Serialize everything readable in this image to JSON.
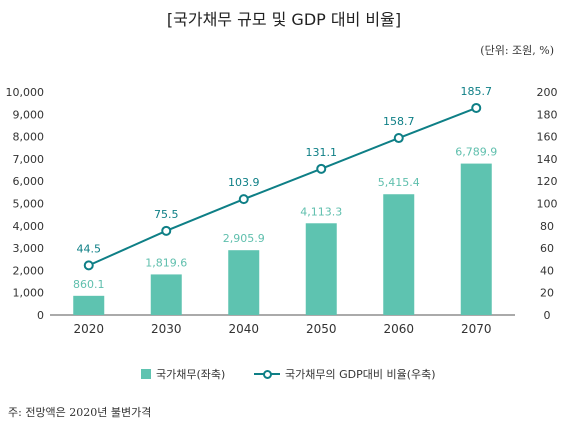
{
  "page": {
    "title": "[국가채무 규모 및 GDP 대비 비율]",
    "unit": "(단위: 조원, %)",
    "source": "주: 전망액은 2020년 불변가격"
  },
  "colors": {
    "bar": "#5ec3b0",
    "bar_label": "#5fbfad",
    "line": "#0e7f86",
    "line_label": "#0e7f86",
    "axis_text": "#333333"
  },
  "legend": {
    "bar_label": "국가채무(좌축)",
    "line_label": "국가채무의 GDP대비 비율(우축)"
  },
  "chart_data": {
    "type": "bar",
    "categories": [
      "2020",
      "2030",
      "2040",
      "2050",
      "2060",
      "2070"
    ],
    "series": [
      {
        "name": "국가채무(좌축)",
        "type": "bar",
        "axis": "left",
        "values": [
          860.1,
          1819.6,
          2905.9,
          4113.3,
          5415.4,
          6789.9
        ],
        "labels": [
          "860.1",
          "1,819.6",
          "2,905.9",
          "4,113.3",
          "5,415.4",
          "6,789.9"
        ]
      },
      {
        "name": "국가채무의 GDP대비 비율(우축)",
        "type": "line",
        "axis": "right",
        "values": [
          44.5,
          75.5,
          103.9,
          131.1,
          158.7,
          185.7
        ],
        "labels": [
          "44.5",
          "75.5",
          "103.9",
          "131.1",
          "158.7",
          "185.7"
        ]
      }
    ],
    "left_axis": {
      "ylim": [
        0,
        10000
      ],
      "ticks": [
        0,
        1000,
        2000,
        3000,
        4000,
        5000,
        6000,
        7000,
        8000,
        9000,
        10000
      ],
      "tick_labels": [
        "0",
        "1,000",
        "2,000",
        "3,000",
        "4,000",
        "5,000",
        "6,000",
        "7,000",
        "8,000",
        "9,000",
        "10,000"
      ]
    },
    "right_axis": {
      "ylim": [
        0,
        200
      ],
      "ticks": [
        0,
        20,
        40,
        60,
        80,
        100,
        120,
        140,
        160,
        180,
        200
      ],
      "tick_labels": [
        "0",
        "20",
        "40",
        "60",
        "80",
        "100",
        "120",
        "140",
        "160",
        "180",
        "200"
      ]
    },
    "grid": false,
    "legend_position": "bottom"
  }
}
